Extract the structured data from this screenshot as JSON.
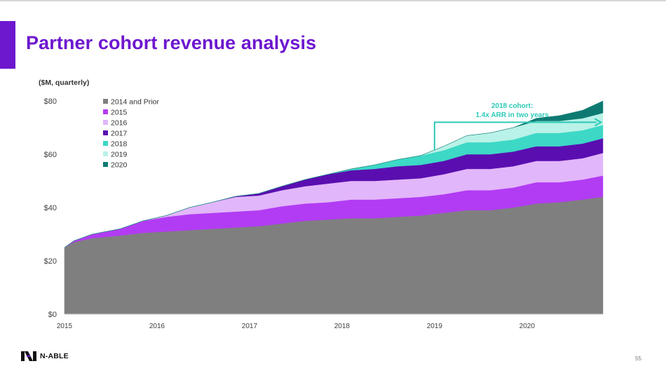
{
  "slide": {
    "title": "Partner cohort revenue analysis",
    "page_number": "55",
    "logo_text": "N-ABLE",
    "accent_color": "#6d17cf"
  },
  "chart_data": {
    "type": "area",
    "stacked": true,
    "unit_label": "($M, quarterly)",
    "ylim": [
      0,
      80
    ],
    "y_ticks": [
      0,
      20,
      40,
      60,
      80
    ],
    "y_tick_labels": [
      "$0",
      "$20",
      "$40",
      "$60",
      "$80"
    ],
    "x_ticks": [
      2015,
      2016,
      2017,
      2018,
      2019,
      2020
    ],
    "x_tick_labels": [
      "2015",
      "2016",
      "2017",
      "2018",
      "2019",
      "2020"
    ],
    "x": [
      2015.0,
      2015.1,
      2015.3,
      2015.6,
      2015.85,
      2016.1,
      2016.35,
      2016.6,
      2016.85,
      2017.1,
      2017.35,
      2017.6,
      2017.85,
      2018.1,
      2018.35,
      2018.6,
      2018.85,
      2019.1,
      2019.35,
      2019.6,
      2019.85,
      2020.1,
      2020.35,
      2020.6,
      2020.82
    ],
    "legend_position": "top-left",
    "series": [
      {
        "name": "2014 and Prior",
        "color": "#7f7f7f",
        "values": [
          25,
          27,
          28.5,
          29.5,
          30.5,
          31,
          31.5,
          32,
          32.5,
          33,
          34,
          35,
          35.5,
          36,
          36,
          36.5,
          37,
          38,
          39,
          39,
          40,
          41.5,
          42,
          43,
          44
        ]
      },
      {
        "name": "2015",
        "color": "#b23cf3",
        "values": [
          0,
          0.5,
          1.5,
          2.5,
          4.5,
          5.5,
          6,
          6,
          6,
          6,
          6.5,
          6.5,
          6.5,
          7,
          7,
          7,
          7,
          7,
          7.5,
          7.5,
          7.5,
          8,
          7.5,
          7.5,
          8
        ]
      },
      {
        "name": "2016",
        "color": "#e2b6fa",
        "values": [
          0,
          0,
          0,
          0,
          0,
          0.5,
          2.5,
          4,
          5.5,
          5.5,
          6,
          6.5,
          7,
          7,
          7,
          7,
          7,
          7.5,
          8,
          8,
          8,
          8,
          8,
          8,
          8.5
        ]
      },
      {
        "name": "2017",
        "color": "#5a0eb0",
        "values": [
          0,
          0,
          0,
          0,
          0,
          0,
          0,
          0,
          0.2,
          0.8,
          1.5,
          2.5,
          3.5,
          4,
          4.5,
          5,
          5,
          5,
          5.5,
          5.5,
          5.5,
          5.5,
          5.5,
          5.5,
          5.5
        ]
      },
      {
        "name": "2018",
        "color": "#3dd8c6",
        "values": [
          0,
          0,
          0,
          0,
          0,
          0,
          0,
          0,
          0,
          0,
          0,
          0,
          0,
          0.5,
          1.5,
          2.5,
          3.5,
          4,
          4.5,
          4.5,
          4.5,
          5,
          5,
          5,
          5
        ]
      },
      {
        "name": "2019",
        "color": "#b9f2e8",
        "values": [
          0,
          0,
          0,
          0,
          0,
          0,
          0,
          0,
          0,
          0,
          0,
          0,
          0,
          0,
          0,
          0,
          0,
          1.5,
          2.5,
          3.5,
          4.5,
          4.5,
          4.5,
          4.5,
          4.5
        ]
      },
      {
        "name": "2020",
        "color": "#0d7a72",
        "values": [
          0,
          0,
          0,
          0,
          0,
          0,
          0,
          0,
          0,
          0,
          0,
          0,
          0,
          0,
          0,
          0,
          0,
          0,
          0,
          0,
          0,
          1,
          2,
          3,
          4.5
        ]
      }
    ],
    "annotation": {
      "lines": [
        "2018 cohort:",
        "1.4x ARR in two years"
      ],
      "color": "#2cc9b6",
      "from_x": 2019.0,
      "to_x": 2020.8,
      "arrow_y": 72
    }
  }
}
